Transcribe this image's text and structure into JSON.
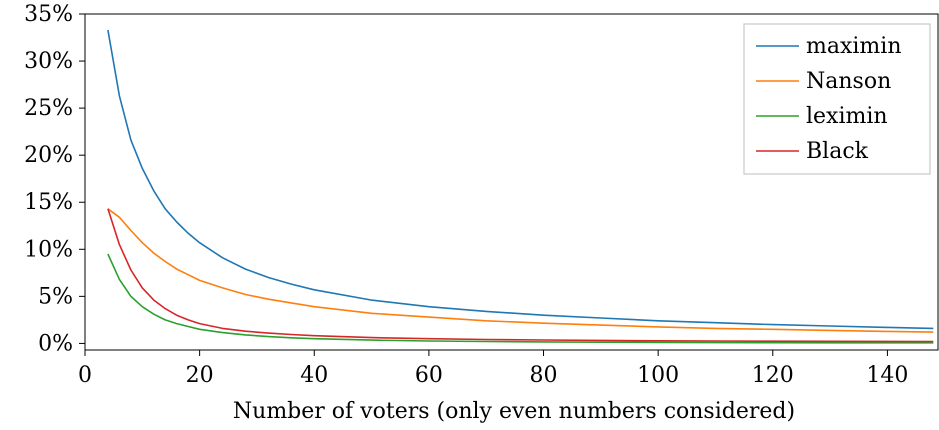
{
  "chart_data": {
    "type": "line",
    "title": "",
    "xlabel": "Number of voters (only even numbers considered)",
    "ylabel": "",
    "xlim": [
      0,
      149
    ],
    "ylim": [
      -0.7,
      35
    ],
    "xticks": [
      0,
      20,
      40,
      60,
      80,
      100,
      120,
      140
    ],
    "yticks": [
      0,
      5,
      10,
      15,
      20,
      25,
      30,
      35
    ],
    "ytick_format": "%",
    "grid": false,
    "legend": "top-right",
    "x": [
      4,
      6,
      8,
      10,
      12,
      14,
      16,
      18,
      20,
      24,
      28,
      32,
      36,
      40,
      50,
      60,
      70,
      80,
      90,
      100,
      110,
      120,
      130,
      140,
      148
    ],
    "series": [
      {
        "name": "maximin",
        "color": "#1f77b4",
        "values": [
          33.3,
          26.3,
          21.6,
          18.6,
          16.2,
          14.3,
          12.9,
          11.7,
          10.7,
          9.1,
          7.9,
          7.0,
          6.3,
          5.7,
          4.6,
          3.9,
          3.4,
          3.0,
          2.7,
          2.4,
          2.2,
          2.0,
          1.85,
          1.7,
          1.6
        ]
      },
      {
        "name": "Nanson",
        "color": "#ff7f0e",
        "values": [
          14.3,
          13.4,
          12.0,
          10.7,
          9.6,
          8.7,
          7.9,
          7.3,
          6.7,
          5.9,
          5.2,
          4.7,
          4.3,
          3.9,
          3.2,
          2.8,
          2.4,
          2.15,
          1.95,
          1.75,
          1.6,
          1.5,
          1.38,
          1.28,
          1.2
        ]
      },
      {
        "name": "leximin",
        "color": "#2ca02c",
        "values": [
          9.5,
          6.8,
          5.0,
          3.9,
          3.1,
          2.5,
          2.1,
          1.8,
          1.5,
          1.15,
          0.9,
          0.72,
          0.6,
          0.5,
          0.35,
          0.26,
          0.2,
          0.16,
          0.13,
          0.11,
          0.09,
          0.08,
          0.07,
          0.06,
          0.06
        ]
      },
      {
        "name": "Black",
        "color": "#d62728",
        "values": [
          14.3,
          10.5,
          7.8,
          5.9,
          4.6,
          3.7,
          3.0,
          2.5,
          2.1,
          1.6,
          1.3,
          1.1,
          0.95,
          0.82,
          0.62,
          0.5,
          0.42,
          0.36,
          0.32,
          0.28,
          0.26,
          0.24,
          0.22,
          0.21,
          0.2
        ]
      }
    ]
  }
}
